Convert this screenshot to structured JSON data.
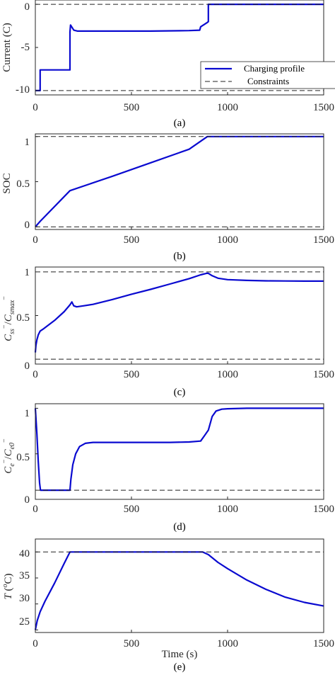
{
  "colors": {
    "profile": "#0a0ad0",
    "constraint": "#222222",
    "axis": "#262626"
  },
  "chart_data": [
    {
      "type": "line",
      "panel_label": "(a)",
      "ylabel": "Current (C)",
      "xlabel": "",
      "xlim": [
        0,
        1500
      ],
      "ylim": [
        -10.5,
        0.5
      ],
      "xticks": [
        "0",
        "500",
        "1000",
        "1500"
      ],
      "yticks": [
        "0",
        "-5",
        "-10"
      ],
      "ytick_values": [
        0,
        -5,
        -10
      ],
      "legend": {
        "placement": "bottom-right",
        "entries": [
          "Charging profile",
          "Constraints"
        ]
      },
      "series": [
        {
          "name": "Charging profile",
          "style": "solid",
          "x": [
            0,
            25,
            25,
            180,
            180,
            183,
            200,
            220,
            400,
            600,
            800,
            855,
            860,
            895,
            900,
            900,
            1500
          ],
          "y": [
            -10,
            -10,
            -7.6,
            -7.6,
            -3.2,
            -2.4,
            -3.0,
            -3.1,
            -3.1,
            -3.1,
            -3.05,
            -3.0,
            -2.6,
            -2.1,
            -2.0,
            0,
            0
          ]
        },
        {
          "name": "Constraints",
          "style": "dashed",
          "x": [
            0,
            1500
          ],
          "y": [
            0,
            0
          ]
        },
        {
          "style": "dashed",
          "x": [
            0,
            1500
          ],
          "y": [
            -10,
            -10
          ]
        }
      ]
    },
    {
      "type": "line",
      "panel_label": "(b)",
      "ylabel": "SOC",
      "xlabel": "",
      "xlim": [
        0,
        1500
      ],
      "ylim": [
        -0.03,
        1.03
      ],
      "xticks": [
        "0",
        "500",
        "1000",
        "1500"
      ],
      "yticks": [
        "0",
        "0.5",
        "1"
      ],
      "ytick_values": [
        0,
        0.5,
        1
      ],
      "series": [
        {
          "style": "solid",
          "x": [
            0,
            25,
            180,
            400,
            600,
            800,
            895,
            1500
          ],
          "y": [
            0,
            0.06,
            0.4,
            0.56,
            0.71,
            0.86,
            1.0,
            1.0
          ]
        },
        {
          "style": "dashed",
          "x": [
            0,
            1500
          ],
          "y": [
            1,
            1
          ]
        },
        {
          "style": "dashed",
          "x": [
            0,
            1500
          ],
          "y": [
            0,
            0
          ]
        }
      ]
    },
    {
      "type": "line",
      "panel_label": "(c)",
      "ylabel": "C_ss / C_smax",
      "xlabel": "",
      "xlim": [
        0,
        1500
      ],
      "ylim": [
        0,
        1
      ],
      "xticks": [
        "0",
        "500",
        "1000",
        "1500"
      ],
      "yticks": [
        "0",
        "0.5",
        "1"
      ],
      "ytick_values": [
        0,
        0.5,
        1
      ],
      "series": [
        {
          "style": "solid",
          "x": [
            0,
            3,
            8,
            15,
            25,
            40,
            60,
            100,
            150,
            180,
            190,
            200,
            215,
            250,
            300,
            400,
            500,
            600,
            700,
            800,
            860,
            890,
            900,
            920,
            950,
            1000,
            1100,
            1200,
            1300,
            1400,
            1500
          ],
          "y": [
            0.12,
            0.19,
            0.25,
            0.3,
            0.34,
            0.36,
            0.39,
            0.45,
            0.54,
            0.61,
            0.64,
            0.6,
            0.59,
            0.6,
            0.615,
            0.665,
            0.72,
            0.77,
            0.825,
            0.88,
            0.92,
            0.935,
            0.935,
            0.91,
            0.885,
            0.87,
            0.862,
            0.858,
            0.856,
            0.855,
            0.855
          ]
        },
        {
          "style": "dashed",
          "x": [
            0,
            1500
          ],
          "y": [
            0.95,
            0.95
          ]
        },
        {
          "style": "dashed",
          "x": [
            0,
            1500
          ],
          "y": [
            0.05,
            0.05
          ]
        }
      ]
    },
    {
      "type": "line",
      "panel_label": "(d)",
      "ylabel": "C_e / C_e0",
      "xlabel": "",
      "xlim": [
        0,
        1500
      ],
      "ylim": [
        0,
        1.05
      ],
      "xticks": [
        "0",
        "500",
        "1000",
        "1500"
      ],
      "yticks": [
        "0",
        "0.5",
        "1"
      ],
      "ytick_values": [
        0,
        0.5,
        1
      ],
      "series": [
        {
          "style": "solid",
          "x": [
            0,
            8,
            15,
            22,
            27,
            30,
            180,
            185,
            195,
            210,
            230,
            260,
            300,
            400,
            500,
            600,
            700,
            800,
            860,
            880,
            900,
            920,
            940,
            970,
            1000,
            1100,
            1500
          ],
          "y": [
            1.0,
            0.72,
            0.42,
            0.18,
            0.1,
            0.1,
            0.1,
            0.22,
            0.38,
            0.5,
            0.58,
            0.615,
            0.625,
            0.625,
            0.625,
            0.625,
            0.625,
            0.63,
            0.64,
            0.7,
            0.76,
            0.91,
            0.97,
            0.99,
            0.995,
            1.0,
            1.0
          ]
        },
        {
          "style": "dashed",
          "x": [
            0,
            1500
          ],
          "y": [
            0.1,
            0.1
          ]
        }
      ]
    },
    {
      "type": "line",
      "panel_label": "(e)",
      "ylabel": "T (oC)",
      "xlabel": "Time (s)",
      "xlim": [
        0,
        1500
      ],
      "ylim": [
        24.5,
        42.5
      ],
      "xticks": [
        "0",
        "500",
        "1000",
        "1500"
      ],
      "yticks": [
        "40",
        "35",
        "30",
        "25"
      ],
      "ytick_values": [
        40,
        35,
        30,
        25
      ],
      "series": [
        {
          "style": "solid",
          "x": [
            0,
            10,
            25,
            50,
            100,
            150,
            180,
            400,
            600,
            800,
            870,
            900,
            950,
            1000,
            1100,
            1200,
            1300,
            1400,
            1500
          ],
          "y": [
            25,
            26.8,
            28.5,
            30.5,
            34.0,
            37.8,
            40,
            40,
            40,
            40,
            40,
            39.5,
            38.0,
            36.8,
            34.6,
            32.8,
            31.3,
            30.3,
            29.6
          ]
        },
        {
          "style": "dashed",
          "x": [
            0,
            1500
          ],
          "y": [
            40,
            40
          ]
        }
      ]
    }
  ]
}
